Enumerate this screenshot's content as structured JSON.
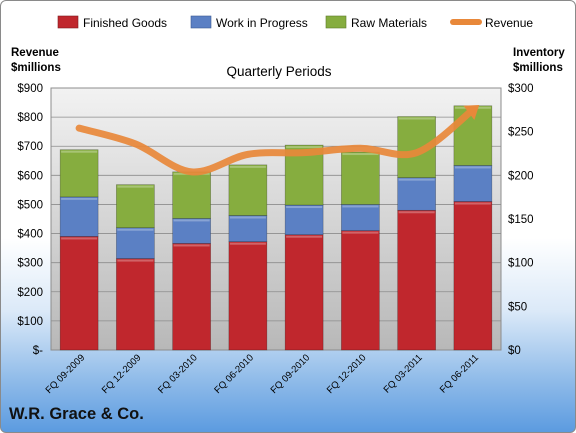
{
  "company": "W.R. Grace & Co.",
  "chart_data": {
    "type": "bar",
    "stacked": true,
    "title": "Quarterly Periods",
    "ylabel_left": [
      "Revenue",
      "$millions"
    ],
    "ylabel_right": [
      "Inventory",
      "$millions"
    ],
    "categories": [
      "FQ 09-2009",
      "FQ 12-2009",
      "FQ 03-2010",
      "FQ 06-2010",
      "FQ 09-2010",
      "FQ 12-2010",
      "FQ 03-2011",
      "FQ 06-2011"
    ],
    "ylim_left": [
      0,
      900
    ],
    "ylim_right": [
      0,
      300
    ],
    "yticks_left": [
      "$-",
      "$100",
      "$200",
      "$300",
      "$400",
      "$500",
      "$600",
      "$700",
      "$800",
      "$900"
    ],
    "yticks_right": [
      "$0",
      "$50",
      "$100",
      "$150",
      "$200",
      "$250",
      "$300"
    ],
    "grid": true,
    "legend_position": "top",
    "series": [
      {
        "name": "Finished Goods",
        "axis": "left",
        "kind": "bar",
        "color": "#c0272d",
        "values": [
          390,
          314,
          366,
          372,
          396,
          410,
          480,
          510
        ]
      },
      {
        "name": "Work in Progress",
        "axis": "left",
        "kind": "bar",
        "color": "#5b80c4",
        "values": [
          136,
          106,
          86,
          90,
          102,
          90,
          112,
          124
        ]
      },
      {
        "name": "Raw Materials",
        "axis": "left",
        "kind": "bar",
        "color": "#86ad3f",
        "values": [
          162,
          148,
          160,
          174,
          206,
          180,
          210,
          205
        ]
      },
      {
        "name": "Revenue",
        "axis": "right",
        "kind": "line",
        "color": "#e8883a",
        "values": [
          254,
          236,
          204,
          224,
          226,
          231,
          226,
          275
        ]
      }
    ]
  }
}
